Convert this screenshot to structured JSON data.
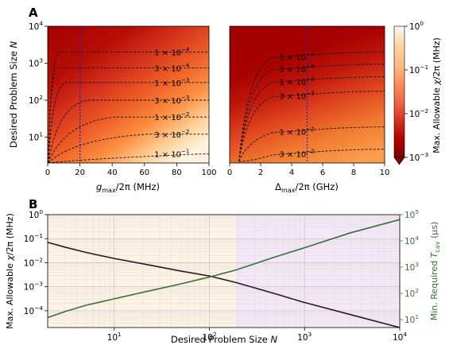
{
  "panel_labels": {
    "a": "A",
    "b": "B"
  },
  "chart_data": [
    {
      "type": "heatmap",
      "panel": "A",
      "subplot": "left",
      "xlabel_main": "g",
      "xlabel_sub": "max",
      "xlabel_tail": "/2π (MHz)",
      "ylabel_main": "Desired Problem Size ",
      "ylabel_var": "N",
      "xlim": [
        0,
        100
      ],
      "ylim": [
        2,
        10000
      ],
      "yscale": "log",
      "xticks": [
        "0",
        "20",
        "40",
        "60",
        "80",
        "100"
      ],
      "yticks": [
        {
          "value": 10,
          "mant": "10",
          "exp": "1"
        },
        {
          "value": 100,
          "mant": "10",
          "exp": "2"
        },
        {
          "value": 1000,
          "mant": "10",
          "exp": "3"
        },
        {
          "value": 10000,
          "mant": "10",
          "exp": "4"
        }
      ],
      "vline_x": 20,
      "contours": [
        {
          "level": 0.0001,
          "mant": "1 × 10",
          "exp": "−4",
          "plateau_N": 2000,
          "x_corner": 7,
          "label_x": 77
        },
        {
          "level": 0.0003,
          "mant": "3 × 10",
          "exp": "−4",
          "plateau_N": 750,
          "x_corner": 6,
          "label_x": 77
        },
        {
          "level": 0.001,
          "mant": "1 × 10",
          "exp": "−3",
          "plateau_N": 300,
          "x_corner": 11,
          "label_x": 77
        },
        {
          "level": 0.003,
          "mant": "3 × 10",
          "exp": "−3",
          "plateau_N": 100,
          "x_corner": 25,
          "label_x": 77
        },
        {
          "level": 0.01,
          "mant": "1 × 10",
          "exp": "−2",
          "plateau_N": 35,
          "x_corner": 42,
          "label_x": 77
        },
        {
          "level": 0.03,
          "mant": "3 × 10",
          "exp": "−2",
          "plateau_N": 12,
          "x_corner": 62,
          "label_x": 77
        },
        {
          "level": 0.1,
          "mant": "1 × 10",
          "exp": "−1",
          "plateau_N": 3.5,
          "x_corner": 95,
          "label_x": 77
        }
      ]
    },
    {
      "type": "heatmap",
      "panel": "A",
      "subplot": "right",
      "xlabel_main": "Δ",
      "xlabel_sub": "max",
      "xlabel_tail": "/2π (GHz)",
      "xlim": [
        0,
        10
      ],
      "ylim": [
        2,
        10000
      ],
      "yscale": "log",
      "xticks": [
        "0",
        "2",
        "4",
        "6",
        "8",
        "10"
      ],
      "vline_x": 5,
      "contours": [
        {
          "level": 0.0001,
          "mant": "1 × 10",
          "exp": "−4",
          "label_x": 3.2,
          "label_N": 1500
        },
        {
          "level": 0.0003,
          "mant": "3 × 10",
          "exp": "−4",
          "label_x": 3.2,
          "label_N": 700
        },
        {
          "level": 0.001,
          "mant": "1 × 10",
          "exp": "−3",
          "label_x": 3.2,
          "label_N": 320
        },
        {
          "level": 0.003,
          "mant": "3 × 10",
          "exp": "−3",
          "label_x": 3.2,
          "label_N": 130
        },
        {
          "level": 0.01,
          "mant": "1 × 10",
          "exp": "−2",
          "label_x": 3.2,
          "label_N": 14
        },
        {
          "level": 0.03,
          "mant": "3 × 10",
          "exp": "−2",
          "label_x": 3.2,
          "label_N": 3.5
        }
      ],
      "colorbar": {
        "label_main": "Max. Allowable ",
        "label_var": "χ",
        "label_tail": "/2π (MHz)",
        "scale": "log",
        "range": [
          0.001,
          1
        ],
        "ticks": [
          {
            "value": 1,
            "mant": "10",
            "exp": "0"
          },
          {
            "value": 0.1,
            "mant": "10",
            "exp": "−1"
          },
          {
            "value": 0.01,
            "mant": "10",
            "exp": "−2"
          },
          {
            "value": 0.001,
            "mant": "10",
            "exp": "−3"
          }
        ],
        "extend": "min",
        "colormap": "OrRd",
        "colors": [
          "#7f0000",
          "#b30000",
          "#d7301f",
          "#ef6548",
          "#fc8d59",
          "#fdbb84",
          "#fdd49e",
          "#fff7ec"
        ]
      }
    },
    {
      "type": "line",
      "panel": "B",
      "xlabel_main": "Desired Problem Size ",
      "xlabel_var": "N",
      "ylabel_left_main": "Max. Allowable ",
      "ylabel_left_var": "χ",
      "ylabel_left_tail": "/2π (MHz)",
      "ylabel_right_main": "Min. Required ",
      "ylabel_right_var": "T",
      "ylabel_right_sub": "cav",
      "ylabel_right_tail": " (μs)",
      "xscale": "log",
      "xlim": [
        2,
        10000
      ],
      "ylim_left": [
        2e-05,
        1
      ],
      "ylim_right": [
        5,
        100000
      ],
      "grid": true,
      "region_boundary_N": 190,
      "region_colors": [
        "#fdf3e4",
        "#f3e7f8"
      ],
      "xticks": [
        {
          "value": 10,
          "mant": "10",
          "exp": "1"
        },
        {
          "value": 100,
          "mant": "10",
          "exp": "2"
        },
        {
          "value": 1000,
          "mant": "10",
          "exp": "3"
        },
        {
          "value": 10000,
          "mant": "10",
          "exp": "4"
        }
      ],
      "yticks_left": [
        {
          "value": 1,
          "mant": "10",
          "exp": "0"
        },
        {
          "value": 0.1,
          "mant": "10",
          "exp": "−1"
        },
        {
          "value": 0.01,
          "mant": "10",
          "exp": "−2"
        },
        {
          "value": 0.001,
          "mant": "10",
          "exp": "−3"
        },
        {
          "value": 0.0001,
          "mant": "10",
          "exp": "−4"
        }
      ],
      "yticks_right": [
        {
          "value": 10,
          "mant": "10",
          "exp": "1"
        },
        {
          "value": 100,
          "mant": "10",
          "exp": "2"
        },
        {
          "value": 1000,
          "mant": "10",
          "exp": "3"
        },
        {
          "value": 10000,
          "mant": "10",
          "exp": "4"
        },
        {
          "value": 100000,
          "mant": "10",
          "exp": "5"
        }
      ],
      "series": [
        {
          "axis": "left",
          "color": "#2a1a1e",
          "points": [
            [
              2,
              0.07
            ],
            [
              3,
              0.045
            ],
            [
              5,
              0.027
            ],
            [
              10,
              0.015
            ],
            [
              20,
              0.009
            ],
            [
              50,
              0.0045
            ],
            [
              100,
              0.0028
            ],
            [
              190,
              0.0015
            ],
            [
              500,
              0.0005
            ],
            [
              1000,
              0.00022
            ],
            [
              3000,
              7e-05
            ],
            [
              10000,
              2e-05
            ]
          ]
        },
        {
          "axis": "right",
          "color": "#3a6e3a",
          "points": [
            [
              2,
              12
            ],
            [
              3,
              20
            ],
            [
              5,
              35
            ],
            [
              10,
              62
            ],
            [
              20,
              110
            ],
            [
              50,
              230
            ],
            [
              100,
              420
            ],
            [
              190,
              780
            ],
            [
              500,
              2500
            ],
            [
              1000,
              5500
            ],
            [
              3000,
              20000
            ],
            [
              10000,
              65000
            ]
          ]
        }
      ]
    }
  ]
}
